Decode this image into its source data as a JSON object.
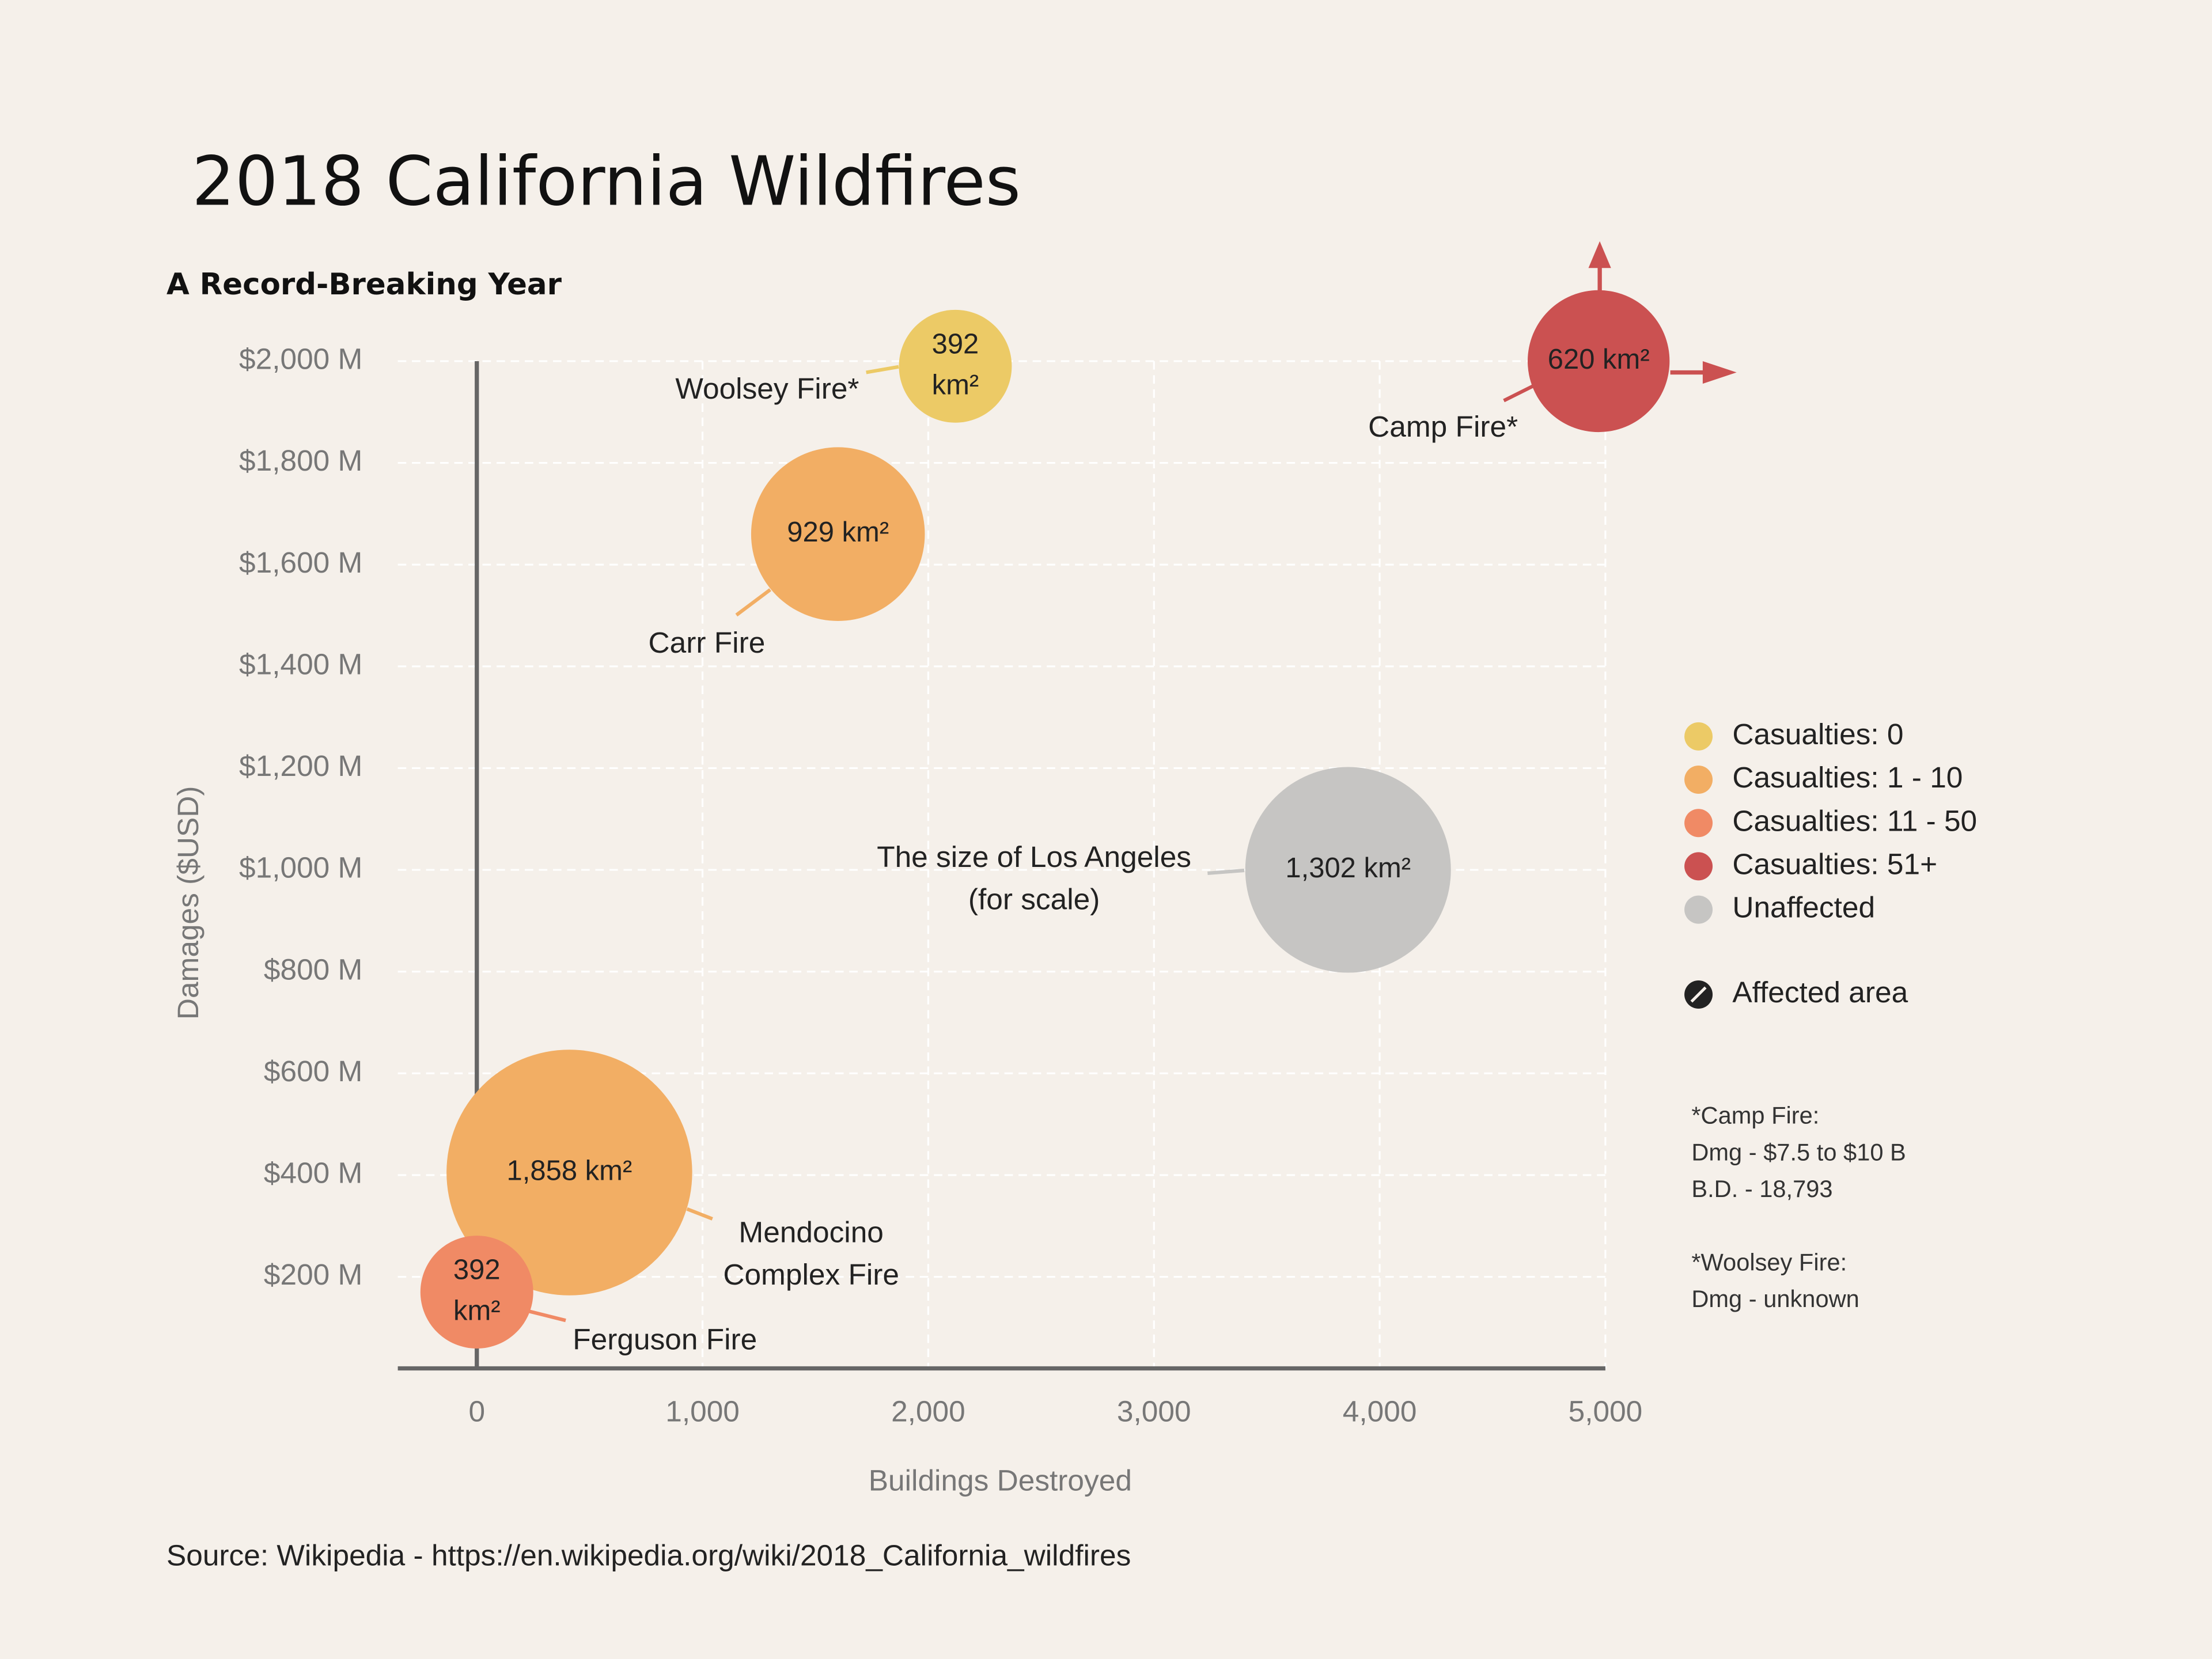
{
  "chart_data": {
    "type": "bubble",
    "title": "2018 California Wildfires",
    "subtitle": "A Record-Breaking Year",
    "x_label": "Buildings Destroyed",
    "y_label": "Damages ($USD)",
    "xlim": [
      -350,
      5000
    ],
    "ylim": [
      20,
      2000
    ],
    "xticks": [
      0,
      {
        "value": 1000,
        "label": "1,000"
      },
      {
        "value": 2000,
        "label": "2,000"
      },
      {
        "value": 3000,
        "label": "3,000"
      },
      {
        "value": 4000,
        "label": "4,000"
      },
      {
        "value": 5000,
        "label": "5,000"
      }
    ],
    "yticks": [
      {
        "value": 200,
        "label": "$200 M"
      },
      {
        "value": 400,
        "label": "$400 M"
      },
      {
        "value": 600,
        "label": "$600 M"
      },
      {
        "value": 800,
        "label": "$800 M"
      },
      {
        "value": 1000,
        "label": "$1,000 M"
      },
      {
        "value": 1200,
        "label": "$1,200 M"
      },
      {
        "value": 1400,
        "label": "$1,400 M"
      },
      {
        "value": 1600,
        "label": "$1,600 M"
      },
      {
        "value": 1800,
        "label": "$1,800 M"
      },
      {
        "value": 2000,
        "label": "$2,000 M"
      }
    ],
    "grid": true,
    "legend": "right",
    "series": [
      {
        "name": "Casualties: 0",
        "color": "#ecca66",
        "x": [
          2120
        ],
        "values": [
          1990
        ],
        "sizes": [
          392
        ],
        "size_labels": [
          "392 km²"
        ],
        "labels": [
          [
            "Woolsey Fire*"
          ]
        ]
      },
      {
        "name": "Casualties: 1 - 10",
        "color": "#f2ae64",
        "x": [
          1600,
          410
        ],
        "values": [
          1660,
          405
        ],
        "sizes": [
          929,
          1858
        ],
        "size_labels": [
          "929 km²",
          "1,858 km²"
        ],
        "labels": [
          [
            "Carr Fire"
          ],
          [
            "Mendocino",
            "Complex Fire"
          ]
        ]
      },
      {
        "name": "Casualties: 11 - 50",
        "color": "#f08a65",
        "x": [
          0
        ],
        "values": [
          170
        ],
        "sizes": [
          392
        ],
        "size_labels": [
          "392 km²"
        ],
        "labels": [
          [
            "Ferguson Fire"
          ]
        ]
      },
      {
        "name": "Casualties: 51+",
        "color": "#cb5151",
        "x": [
          4970
        ],
        "values": [
          2000
        ],
        "sizes": [
          620
        ],
        "size_labels": [
          "620 km²"
        ],
        "labels": [
          [
            "Camp Fire*"
          ]
        ]
      },
      {
        "name": "Unaffected",
        "color": "#c6c5c3",
        "x": [
          3860
        ],
        "values": [
          1000
        ],
        "sizes": [
          1302
        ],
        "size_labels": [
          "1,302 km²"
        ],
        "labels": [
          [
            "The size of Los Angeles",
            "(for scale)"
          ]
        ]
      }
    ],
    "legend_extra": "Affected area",
    "notes": [
      "*Camp Fire:",
      "Dmg - $7.5 to $10 B",
      "B.D. - 18,793",
      "*Woolsey Fire:",
      "Dmg - unknown"
    ],
    "source": "Source: Wikipedia - https://en.wikipedia.org/wiki/2018_California_wildfires"
  }
}
